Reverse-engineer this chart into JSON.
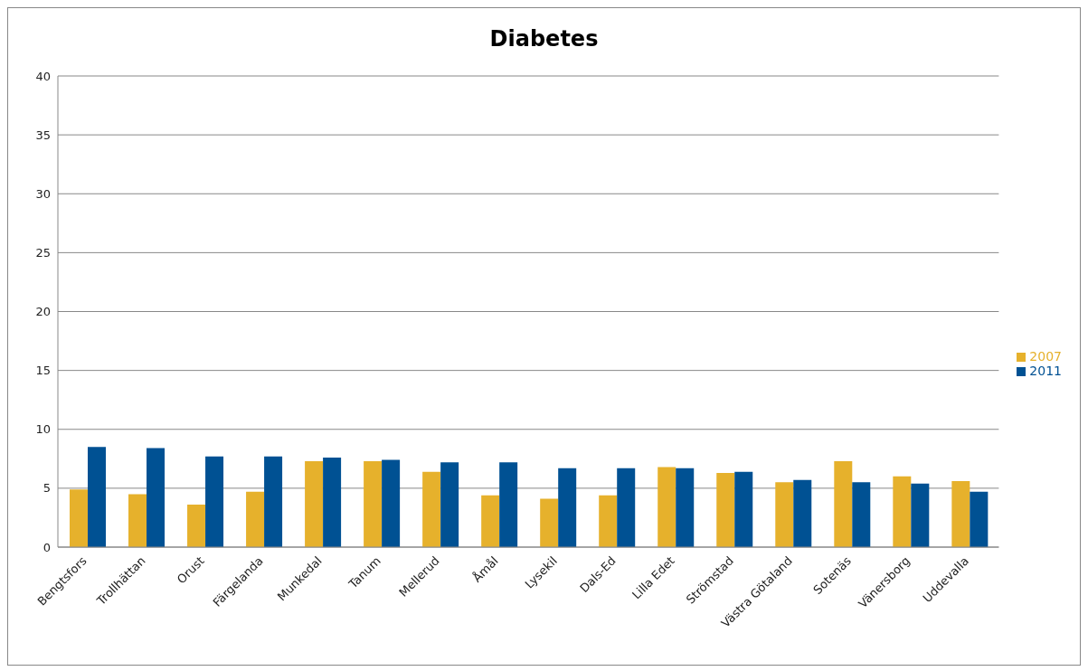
{
  "chart_data": {
    "type": "bar",
    "title": "Diabetes",
    "categories": [
      "Bengtsfors",
      "Trollhättan",
      "Orust",
      "Färgelanda",
      "Munkedal",
      "Tanum",
      "Mellerud",
      "Åmål",
      "Lysekil",
      "Dals-Ed",
      "Lilla Edet",
      "Strömstad",
      "Västra Götaland",
      "Sotenäs",
      "Vänersborg",
      "Uddevalla"
    ],
    "series": [
      {
        "name": "2007",
        "color": "#e6b12c",
        "values": [
          4.9,
          4.5,
          3.6,
          4.7,
          7.3,
          7.3,
          6.4,
          4.4,
          4.1,
          4.4,
          6.8,
          6.3,
          5.5,
          7.3,
          6.0,
          5.6
        ]
      },
      {
        "name": "2011",
        "color": "#005193",
        "values": [
          8.5,
          8.4,
          7.7,
          7.7,
          7.6,
          7.4,
          7.2,
          7.2,
          6.7,
          6.7,
          6.7,
          6.4,
          5.7,
          5.5,
          5.4,
          4.7
        ]
      }
    ],
    "ylim": [
      0,
      40
    ],
    "yticks": [
      0,
      5,
      10,
      15,
      20,
      25,
      30,
      35,
      40
    ],
    "grid": "y",
    "legend": "right"
  }
}
